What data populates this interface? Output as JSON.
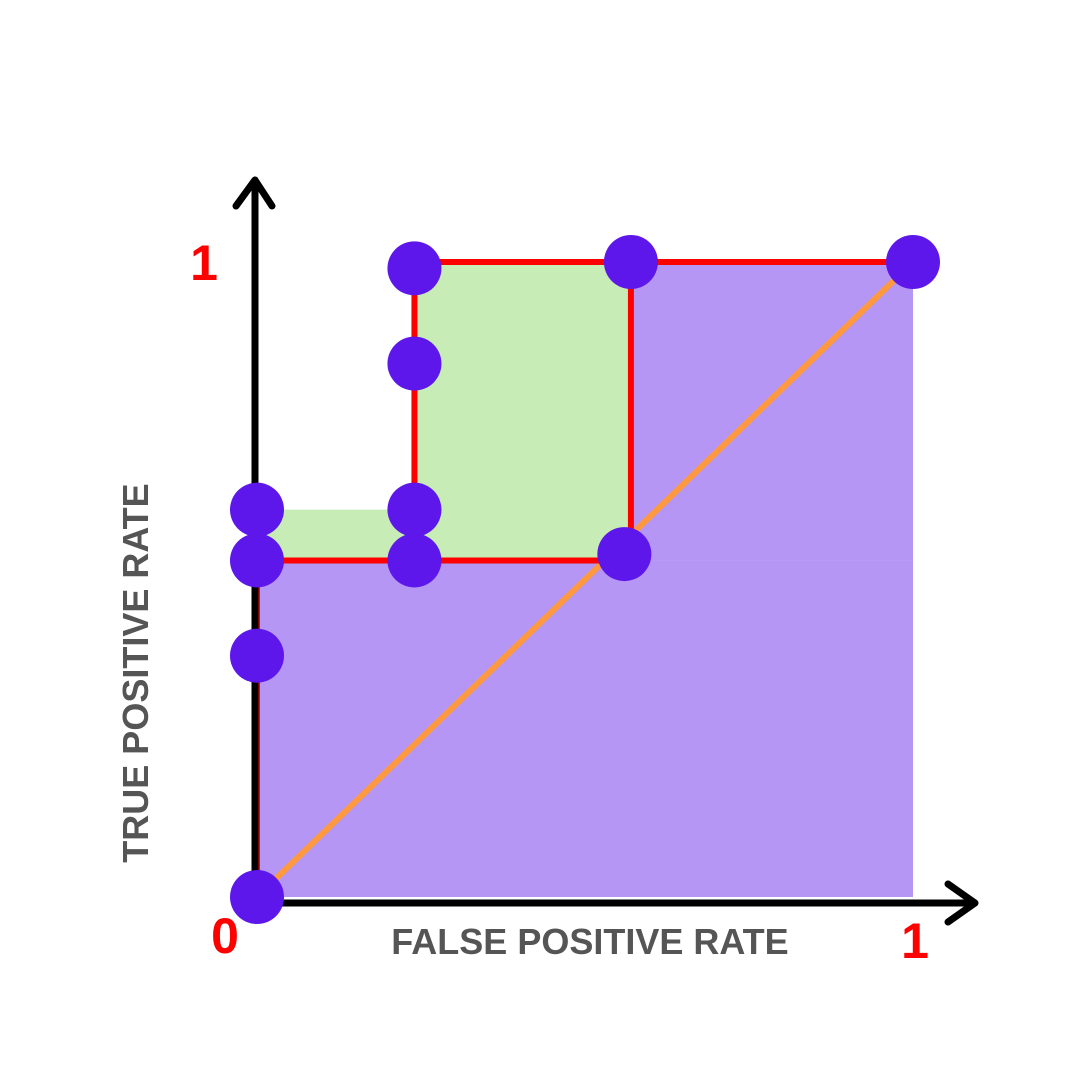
{
  "chart_data": {
    "type": "line",
    "title": "",
    "xlabel": "FALSE POSITIVE RATE",
    "ylabel": "TRUE POSITIVE RATE",
    "xlim": [
      0,
      1
    ],
    "ylim": [
      0,
      1
    ],
    "grid": false,
    "tick_labels": {
      "x_origin": "0",
      "x_max": "1",
      "y_max": "1"
    },
    "series": [
      {
        "kind": "roc_curve",
        "points": [
          {
            "x": 0.0,
            "y": 0.0
          },
          {
            "x": 0.0,
            "y": 0.22
          },
          {
            "x": 0.0,
            "y": 0.38
          },
          {
            "x": 0.0,
            "y": 0.53
          },
          {
            "x": 0.24,
            "y": 0.53
          },
          {
            "x": 0.24,
            "y": 0.7
          },
          {
            "x": 0.24,
            "y": 0.84
          },
          {
            "x": 0.24,
            "y": 1.0
          },
          {
            "x": 0.57,
            "y": 1.0
          },
          {
            "x": 1.0,
            "y": 1.0
          }
        ]
      },
      {
        "kind": "roc_curve",
        "points": [
          {
            "x": 0.0,
            "y": 0.38
          },
          {
            "x": 0.0,
            "y": 0.53
          },
          {
            "x": 0.24,
            "y": 0.53
          },
          {
            "x": 0.57,
            "y": 0.53
          },
          {
            "x": 0.57,
            "y": 1.0
          },
          {
            "x": 1.0,
            "y": 1.0
          }
        ]
      },
      {
        "kind": "diagonal",
        "points": [
          {
            "x": 0.0,
            "y": 0.0
          },
          {
            "x": 1.0,
            "y": 1.0
          }
        ]
      }
    ],
    "regions": [
      {
        "kind": "auc_base",
        "x": [
          0.0,
          1.0
        ],
        "y": [
          0.0,
          0.53
        ]
      },
      {
        "kind": "auc_base",
        "x": [
          0.57,
          1.0
        ],
        "y": [
          0.53,
          1.0
        ]
      },
      {
        "kind": "auc_difference",
        "x": [
          0.0,
          0.24
        ],
        "y": [
          0.53,
          0.61
        ]
      },
      {
        "kind": "auc_difference",
        "x": [
          0.24,
          0.57
        ],
        "y": [
          0.53,
          1.0
        ]
      }
    ],
    "markers": [
      {
        "x": 0.0,
        "y": 0.0
      },
      {
        "x": 0.0,
        "y": 0.38
      },
      {
        "x": 0.0,
        "y": 0.53
      },
      {
        "x": 0.0,
        "y": 0.61
      },
      {
        "x": 0.24,
        "y": 0.53
      },
      {
        "x": 0.24,
        "y": 0.61
      },
      {
        "x": 0.24,
        "y": 0.84
      },
      {
        "x": 0.24,
        "y": 0.99
      },
      {
        "x": 0.57,
        "y": 1.0
      },
      {
        "x": 0.56,
        "y": 0.54
      },
      {
        "x": 1.0,
        "y": 1.0
      }
    ]
  },
  "colors": {
    "auc_base": "#b596f5",
    "auc_difference": "#c7ecb6",
    "roc_line": "#ff0000",
    "diagonal": "#ff9940",
    "marker": "#5e17eb",
    "axis": "#000000",
    "tick_label": "#ff0000",
    "axis_title": "#555555"
  }
}
